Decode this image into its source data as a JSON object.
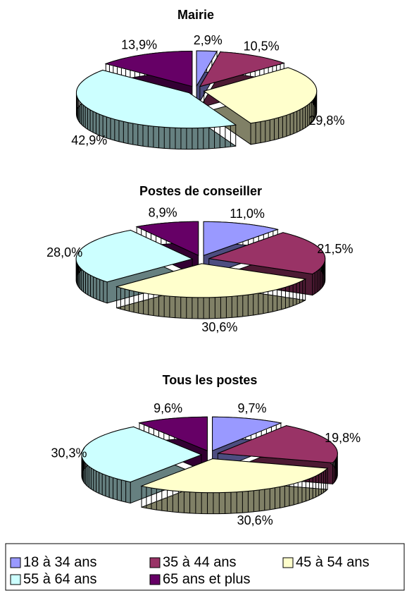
{
  "chart_data": [
    {
      "type": "pie",
      "title": "Mairie",
      "values": [
        2.9,
        10.5,
        29.8,
        42.9,
        13.9
      ],
      "value_labels": [
        "2,9%",
        "10,5%",
        "29,8%",
        "42,9%",
        "13,9%"
      ]
    },
    {
      "type": "pie",
      "title": "Postes de conseiller",
      "values": [
        11.0,
        21.5,
        30.6,
        28.0,
        8.9
      ],
      "value_labels": [
        "11,0%",
        "21,5%",
        "30,6%",
        "28,0%",
        "8,9%"
      ]
    },
    {
      "type": "pie",
      "title": "Tous les postes",
      "values": [
        9.7,
        19.8,
        30.6,
        30.3,
        9.6
      ],
      "value_labels": [
        "9,7%",
        "19,8%",
        "30,6%",
        "30,3%",
        "9,6%"
      ]
    }
  ],
  "legend": {
    "labels": [
      "18 à 34 ans",
      "35 à 44 ans",
      "45 à 54 ans",
      "55 à 64 ans",
      "65 ans et plus"
    ],
    "colors": [
      "#9999ff",
      "#993366",
      "#ffffcc",
      "#ccffff",
      "#660066"
    ]
  }
}
